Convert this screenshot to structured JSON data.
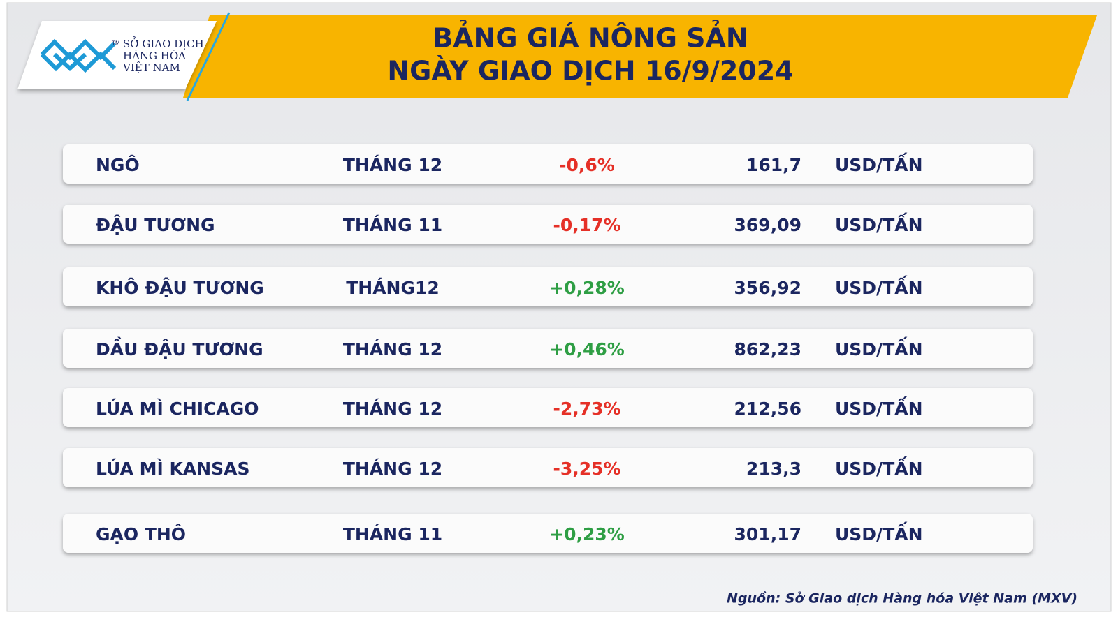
{
  "header": {
    "logo_text": [
      "SỞ GIAO DỊCH",
      "HÀNG HÓA",
      "VIỆT NAM"
    ],
    "logo_mark": "TM",
    "title": [
      "BẢNG GIÁ NÔNG SẢN",
      "NGÀY GIAO DỊCH 16/9/2024"
    ]
  },
  "table": {
    "rows": [
      [
        "NGÔ",
        "THÁNG 12",
        "-0,6%",
        "161,7",
        "USD/TẤN"
      ],
      [
        "ĐẬU TƯƠNG",
        "THÁNG 11",
        "-0,17%",
        "369,09",
        "USD/TẤN"
      ],
      [
        "KHÔ ĐẬU TƯƠNG",
        "THÁNG12",
        "+0,28%",
        "356,92",
        "USD/TẤN"
      ],
      [
        "DẦU ĐẬU TƯƠNG",
        "THÁNG 12",
        "+0,46%",
        "862,23",
        "USD/TẤN"
      ],
      [
        "LÚA MÌ CHICAGO",
        "THÁNG 12",
        "-2,73%",
        "212,56",
        "USD/TẤN"
      ],
      [
        "LÚA MÌ KANSAS",
        "THÁNG 12",
        "-3,25%",
        "213,3",
        "USD/TẤN"
      ],
      [
        "GẠO THÔ",
        "THÁNG 11",
        "+0,23%",
        "301,17",
        "USD/TẤN"
      ]
    ],
    "change_colors": {
      "positive": "#2e9e44",
      "negative": "#e53027"
    }
  },
  "source": "Nguồn: Sở Giao dịch Hàng hóa Việt Nam (MXV)"
}
